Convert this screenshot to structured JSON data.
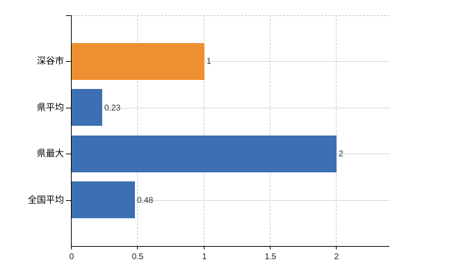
{
  "chart_data": {
    "type": "bar",
    "orientation": "horizontal",
    "title": "",
    "categories": [
      "深谷市",
      "県平均",
      "県最大",
      "全国平均"
    ],
    "values": [
      1,
      0.23,
      2,
      0.48
    ],
    "value_labels": [
      "1",
      "0.23",
      "2",
      "0.48"
    ],
    "series": [
      {
        "name": "",
        "values": [
          1,
          0.23,
          2,
          0.48
        ]
      }
    ],
    "bar_colors": [
      "#ee8f31",
      "#3d70b2",
      "#3d70b2",
      "#3d70b2"
    ],
    "x_ticks": [
      0,
      0.5,
      1,
      1.5,
      2
    ],
    "x_tick_labels": [
      "0",
      "0.5",
      "1",
      "1.5",
      "2"
    ],
    "xlim": [
      0,
      2.4
    ],
    "grid": "on",
    "legend": "none",
    "colors": {
      "bar_blue": "#3d70b2",
      "bar_orange": "#ee8f31",
      "axis": "#000000",
      "grid_horizontal": "#d6dad6",
      "grid_vertical": "#cccccc",
      "plot_top_border": "#c9c9c9",
      "category_text": "#000000",
      "value_text": "#333333",
      "background": "#ffffff"
    }
  }
}
